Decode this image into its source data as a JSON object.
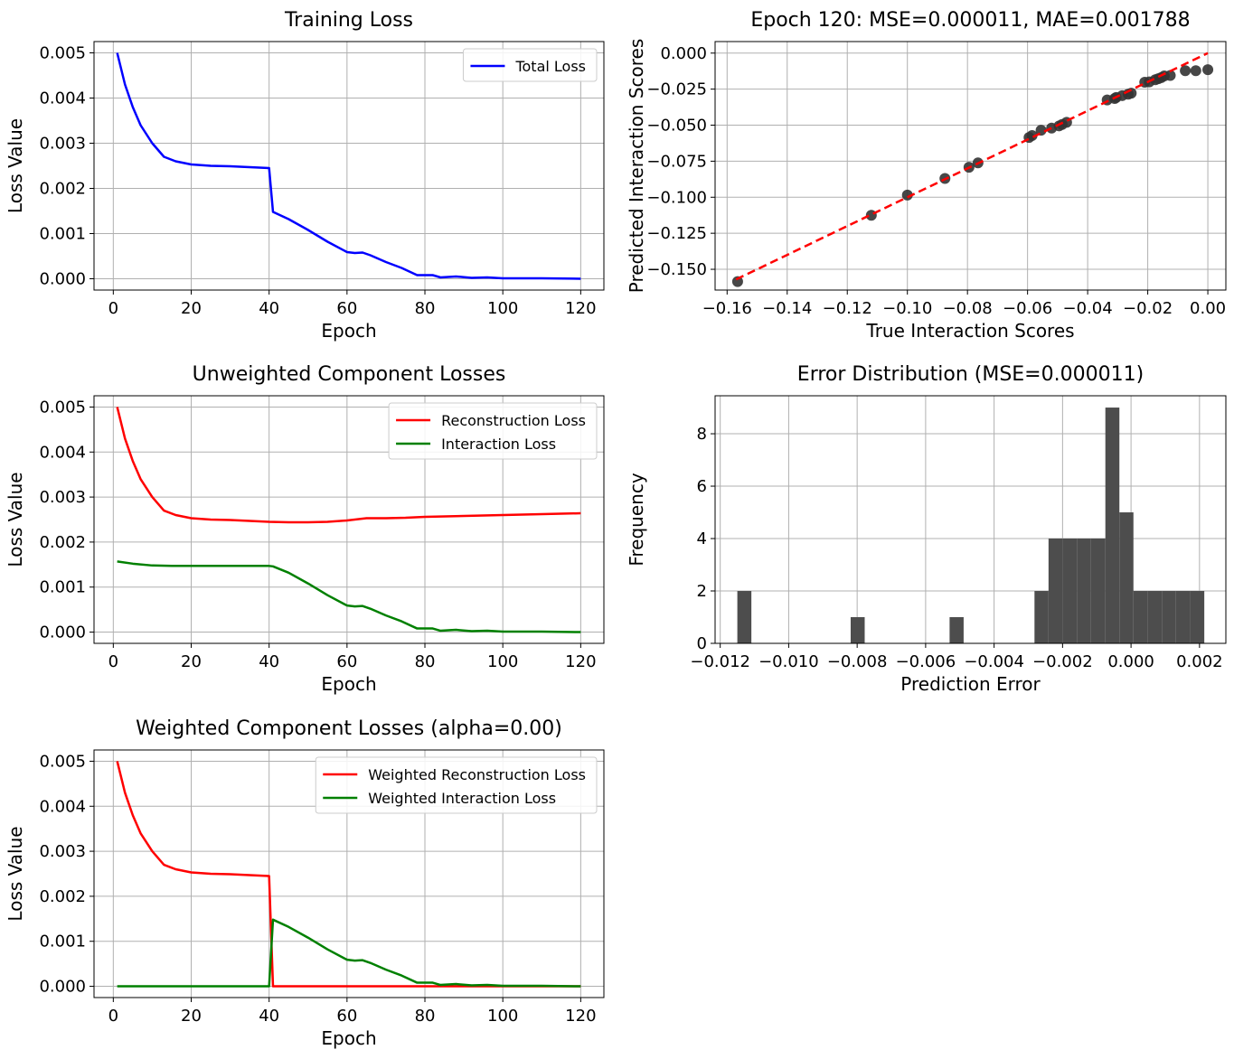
{
  "chart_data": [
    {
      "type": "line",
      "title": "Training Loss",
      "xlabel": "Epoch",
      "ylabel": "Loss Value",
      "xlim": [
        -4.95,
        125.95
      ],
      "ylim": [
        -0.00025,
        0.00525
      ],
      "xticks": [
        0,
        20,
        40,
        60,
        80,
        100,
        120
      ],
      "yticks": [
        0,
        0.001,
        0.002,
        0.003,
        0.004,
        0.005
      ],
      "ytick_labels": [
        "0.000",
        "0.001",
        "0.002",
        "0.003",
        "0.004",
        "0.005"
      ],
      "grid": true,
      "legend": "upper right",
      "series": [
        {
          "name": "Total Loss",
          "color": "#0000ff",
          "x": [
            1,
            3,
            5,
            7,
            10,
            13,
            16,
            20,
            25,
            30,
            35,
            40,
            41,
            45,
            50,
            55,
            60,
            62,
            64,
            66,
            70,
            74,
            78,
            80,
            82,
            84,
            88,
            92,
            96,
            100,
            110,
            120
          ],
          "y": [
            0.005,
            0.0043,
            0.0038,
            0.0034,
            0.003,
            0.0027,
            0.0026,
            0.00253,
            0.0025,
            0.00249,
            0.00247,
            0.00245,
            0.00148,
            0.00132,
            0.00108,
            0.00082,
            0.00059,
            0.00057,
            0.00058,
            0.00052,
            0.00037,
            0.00024,
            8e-05,
            8e-05,
            8e-05,
            3e-05,
            5e-05,
            2e-05,
            3e-05,
            1e-05,
            1e-05,
            0.0
          ]
        }
      ]
    },
    {
      "type": "scatter",
      "title": "Epoch 120: MSE=0.000011, MAE=0.001788",
      "xlabel": "True Interaction Scores",
      "ylabel": "Predicted Interaction Scores",
      "xlim": [
        -0.164,
        0.006
      ],
      "ylim": [
        -0.1644,
        0.008
      ],
      "xticks": [
        -0.16,
        -0.14,
        -0.12,
        -0.1,
        -0.08,
        -0.06,
        -0.04,
        -0.02,
        0.0
      ],
      "xtick_labels": [
        "−0.16",
        "−0.14",
        "−0.12",
        "−0.10",
        "−0.08",
        "−0.06",
        "−0.04",
        "−0.02",
        "0.00"
      ],
      "yticks": [
        -0.15,
        -0.125,
        -0.1,
        -0.075,
        -0.05,
        -0.025,
        0.0
      ],
      "ytick_labels": [
        "−0.150",
        "−0.125",
        "−0.100",
        "−0.075",
        "−0.050",
        "−0.025",
        "0.000"
      ],
      "grid": true,
      "point_color": "#333333",
      "line_color": "#ff0000",
      "points": [
        [
          -0.1565,
          -0.1585
        ],
        [
          -0.112,
          -0.1125
        ],
        [
          -0.1,
          -0.0985
        ],
        [
          -0.0875,
          -0.087
        ],
        [
          -0.0795,
          -0.0792
        ],
        [
          -0.0765,
          -0.0762
        ],
        [
          -0.0595,
          -0.0585
        ],
        [
          -0.0585,
          -0.0572
        ],
        [
          -0.0555,
          -0.0535
        ],
        [
          -0.052,
          -0.052
        ],
        [
          -0.0495,
          -0.0505
        ],
        [
          -0.0485,
          -0.0495
        ],
        [
          -0.047,
          -0.048
        ],
        [
          -0.0335,
          -0.0325
        ],
        [
          -0.031,
          -0.0315
        ],
        [
          -0.0305,
          -0.0308
        ],
        [
          -0.0285,
          -0.0295
        ],
        [
          -0.0265,
          -0.0285
        ],
        [
          -0.0255,
          -0.0278
        ],
        [
          -0.021,
          -0.0202
        ],
        [
          -0.0195,
          -0.02
        ],
        [
          -0.0175,
          -0.0185
        ],
        [
          -0.0165,
          -0.0178
        ],
        [
          -0.0155,
          -0.017
        ],
        [
          -0.0145,
          -0.0158
        ],
        [
          -0.0125,
          -0.0155
        ],
        [
          -0.0075,
          -0.0122
        ],
        [
          -0.004,
          -0.0122
        ],
        [
          0.0,
          -0.0115
        ]
      ],
      "reference_line": [
        [
          -0.157,
          -0.157
        ],
        [
          0.0,
          0.0
        ]
      ]
    },
    {
      "type": "line",
      "title": "Unweighted Component Losses",
      "xlabel": "Epoch",
      "ylabel": "Loss Value",
      "xlim": [
        -4.95,
        125.95
      ],
      "ylim": [
        -0.00025,
        0.00525
      ],
      "xticks": [
        0,
        20,
        40,
        60,
        80,
        100,
        120
      ],
      "yticks": [
        0,
        0.001,
        0.002,
        0.003,
        0.004,
        0.005
      ],
      "ytick_labels": [
        "0.000",
        "0.001",
        "0.002",
        "0.003",
        "0.004",
        "0.005"
      ],
      "grid": true,
      "legend": "upper right",
      "series": [
        {
          "name": "Reconstruction Loss",
          "color": "#ff0000",
          "x": [
            1,
            3,
            5,
            7,
            10,
            13,
            16,
            20,
            25,
            30,
            35,
            40,
            45,
            50,
            55,
            60,
            65,
            70,
            75,
            80,
            90,
            100,
            110,
            120
          ],
          "y": [
            0.005,
            0.0043,
            0.0038,
            0.0034,
            0.003,
            0.0027,
            0.0026,
            0.00253,
            0.0025,
            0.00249,
            0.00247,
            0.00245,
            0.00244,
            0.00244,
            0.00245,
            0.00248,
            0.00253,
            0.00253,
            0.00254,
            0.00256,
            0.00258,
            0.0026,
            0.00262,
            0.00264
          ]
        },
        {
          "name": "Interaction Loss",
          "color": "#008000",
          "x": [
            1,
            5,
            10,
            15,
            20,
            30,
            40,
            41,
            45,
            50,
            55,
            60,
            62,
            64,
            66,
            70,
            74,
            78,
            80,
            82,
            84,
            88,
            92,
            96,
            100,
            110,
            120
          ],
          "y": [
            0.00157,
            0.00152,
            0.00148,
            0.00147,
            0.00147,
            0.00147,
            0.00147,
            0.00146,
            0.00132,
            0.00108,
            0.00082,
            0.00059,
            0.00057,
            0.00058,
            0.00052,
            0.00037,
            0.00024,
            8e-05,
            8e-05,
            8e-05,
            3e-05,
            5e-05,
            2e-05,
            3e-05,
            1e-05,
            1e-05,
            0.0
          ]
        }
      ]
    },
    {
      "type": "bar",
      "title": "Error Distribution (MSE=0.000011)",
      "xlabel": "Prediction Error",
      "ylabel": "Frequency",
      "xlim": [
        -0.01215,
        0.00277
      ],
      "ylim": [
        0,
        9.45
      ],
      "xticks": [
        -0.012,
        -0.01,
        -0.008,
        -0.006,
        -0.004,
        -0.002,
        0.0,
        0.002
      ],
      "xtick_labels": [
        "−0.012",
        "−0.010",
        "−0.008",
        "−0.006",
        "−0.004",
        "−0.002",
        "0.000",
        "0.002"
      ],
      "yticks": [
        0,
        2,
        4,
        6,
        8
      ],
      "grid": true,
      "bar_color": "#4d4d4d",
      "bin_edges": [
        -0.0115,
        -0.01109,
        -0.01067,
        -0.01026,
        -0.00985,
        -0.00943,
        -0.00902,
        -0.00861,
        -0.00819,
        -0.00778,
        -0.00737,
        -0.00695,
        -0.00654,
        -0.00613,
        -0.00571,
        -0.0053,
        -0.00489,
        -0.00447,
        -0.00406,
        -0.00365,
        -0.00323,
        -0.00282,
        -0.00241,
        -0.00199,
        -0.00158,
        -0.00117,
        -0.00075,
        -0.00034,
        7e-05,
        0.00049,
        0.0009,
        0.00131,
        0.00173,
        0.00214
      ],
      "counts": [
        2,
        0,
        0,
        0,
        0,
        0,
        0,
        0,
        1,
        0,
        0,
        0,
        0,
        0,
        0,
        1,
        0,
        0,
        0,
        0,
        0,
        2,
        4,
        4,
        4,
        4,
        9,
        5,
        2,
        2,
        2,
        2,
        2
      ]
    },
    {
      "type": "line",
      "title": "Weighted Component Losses (alpha=0.00)",
      "xlabel": "Epoch",
      "ylabel": "Loss Value",
      "xlim": [
        -4.95,
        125.95
      ],
      "ylim": [
        -0.00025,
        0.00525
      ],
      "xticks": [
        0,
        20,
        40,
        60,
        80,
        100,
        120
      ],
      "yticks": [
        0,
        0.001,
        0.002,
        0.003,
        0.004,
        0.005
      ],
      "ytick_labels": [
        "0.000",
        "0.001",
        "0.002",
        "0.003",
        "0.004",
        "0.005"
      ],
      "grid": true,
      "legend": "upper right",
      "series": [
        {
          "name": "Weighted Reconstruction Loss",
          "color": "#ff0000",
          "x": [
            1,
            3,
            5,
            7,
            10,
            13,
            16,
            20,
            25,
            30,
            35,
            40,
            41,
            50,
            60,
            80,
            100,
            120
          ],
          "y": [
            0.005,
            0.0043,
            0.0038,
            0.0034,
            0.003,
            0.0027,
            0.0026,
            0.00253,
            0.0025,
            0.00249,
            0.00247,
            0.00245,
            0.0,
            0.0,
            0.0,
            0.0,
            0.0,
            0.0
          ]
        },
        {
          "name": "Weighted Interaction Loss",
          "color": "#008000",
          "x": [
            1,
            10,
            20,
            30,
            40,
            41,
            45,
            50,
            55,
            60,
            62,
            64,
            66,
            70,
            74,
            78,
            80,
            82,
            84,
            88,
            92,
            96,
            100,
            110,
            120
          ],
          "y": [
            0.0,
            0.0,
            0.0,
            0.0,
            0.0,
            0.00148,
            0.00132,
            0.00108,
            0.00082,
            0.00059,
            0.00057,
            0.00058,
            0.00052,
            0.00037,
            0.00024,
            8e-05,
            8e-05,
            8e-05,
            3e-05,
            5e-05,
            2e-05,
            3e-05,
            1e-05,
            1e-05,
            0.0
          ]
        }
      ]
    }
  ]
}
